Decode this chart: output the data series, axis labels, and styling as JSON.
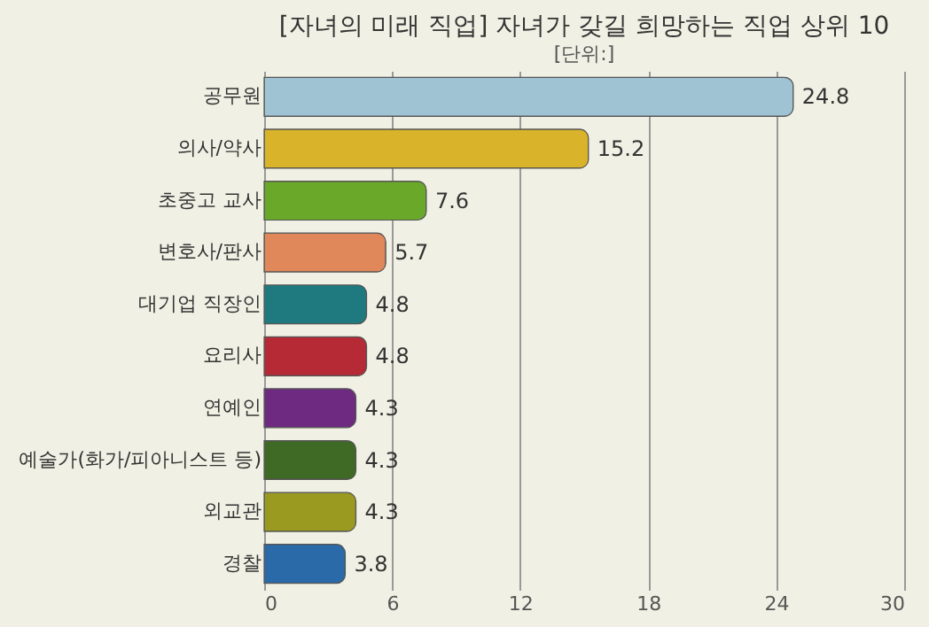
{
  "chart_data": {
    "type": "bar",
    "orientation": "horizontal",
    "title": "[자녀의 미래 직업] 자녀가 갖길 희망하는 직업 상위 10",
    "subtitle": "[단위:]",
    "categories": [
      "공무원",
      "의사/약사",
      "초중고 교사",
      "변호사/판사",
      "대기업 직장인",
      "요리사",
      "연예인",
      "예술가(화가/피아니스트 등)",
      "외교관",
      "경찰"
    ],
    "values": [
      24.8,
      15.2,
      7.6,
      5.7,
      4.8,
      4.8,
      4.3,
      4.3,
      4.3,
      3.8
    ],
    "colors": [
      "#9fc3d3",
      "#d9b32a",
      "#6aa82a",
      "#e0885a",
      "#1f7a80",
      "#b52a35",
      "#6e2a80",
      "#3f6a25",
      "#9a9a20",
      "#2a6aa8"
    ],
    "xlim": [
      0,
      30
    ],
    "xticks": [
      0,
      6,
      12,
      18,
      24,
      30
    ],
    "grid": "x",
    "data_labels": true
  }
}
